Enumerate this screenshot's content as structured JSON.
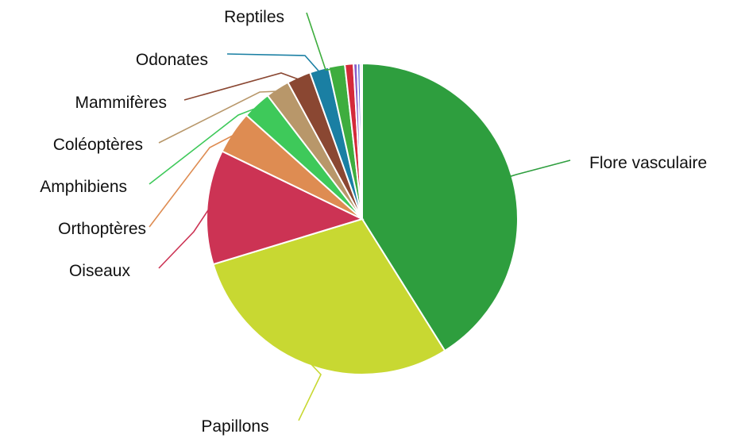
{
  "chart_data": {
    "type": "pie",
    "title": "",
    "start": "top",
    "direction": "clockwise",
    "slices": [
      {
        "label": "Flore vasculaire",
        "value": 41.5,
        "color": "#2e9e3e"
      },
      {
        "label": "Papillons",
        "value": 29.5,
        "color": "#c8d832"
      },
      {
        "label": "Oiseaux",
        "value": 12.0,
        "color": "#cc3354"
      },
      {
        "label": "Orthoptères",
        "value": 4.5,
        "color": "#de8c52"
      },
      {
        "label": "Amphibiens",
        "value": 3.0,
        "color": "#3ec95a"
      },
      {
        "label": "Coléoptères",
        "value": 2.5,
        "color": "#b8976a"
      },
      {
        "label": "Mammifères",
        "value": 2.5,
        "color": "#8a4732"
      },
      {
        "label": "Odonates",
        "value": 2.0,
        "color": "#1a7fa3"
      },
      {
        "label": "Reptiles",
        "value": 1.7,
        "color": "#3ead3e"
      },
      {
        "label": "",
        "value": 0.9,
        "color": "#d42a3a"
      },
      {
        "label": "",
        "value": 0.4,
        "color": "#8a5cc7"
      },
      {
        "label": "",
        "value": 0.3,
        "color": "#5a6ad8"
      },
      {
        "label": "",
        "value": 0.2,
        "color": "#d2d2d2"
      }
    ]
  }
}
